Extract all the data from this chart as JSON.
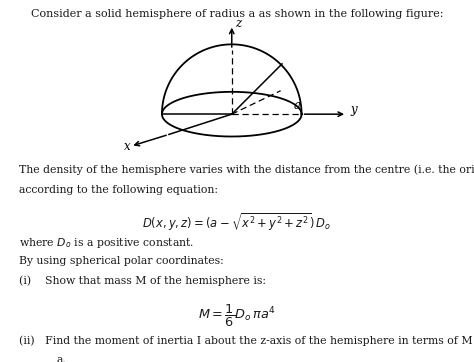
{
  "title": "Consider a solid hemisphere of radius a as shown in the following figure:",
  "background_color": "#ffffff",
  "text_color": "#1a1a1a",
  "fig_width": 4.74,
  "fig_height": 3.62,
  "dpi": 100,
  "paragraph1": "The density of the hemisphere varies with the distance from the centre (i.e. the origin)",
  "paragraph2": "according to the following equation:",
  "equation1": "$D(x,y,z) = (a - \\sqrt{x^2 + y^2 + z^2})\\,D_o$",
  "paragraph3": "where $D_o$ is a positive constant.",
  "paragraph4": "By using spherical polar coordinates:",
  "item_i": "(i)    Show that mass M of the hemisphere is:",
  "equation2": "$M = \\dfrac{1}{6}D_o\\,\\pi a^4$",
  "item_ii": "(ii)   Find the moment of inertia I about the z-axis of the hemisphere in terms of M and",
  "item_ii_cont": "a."
}
